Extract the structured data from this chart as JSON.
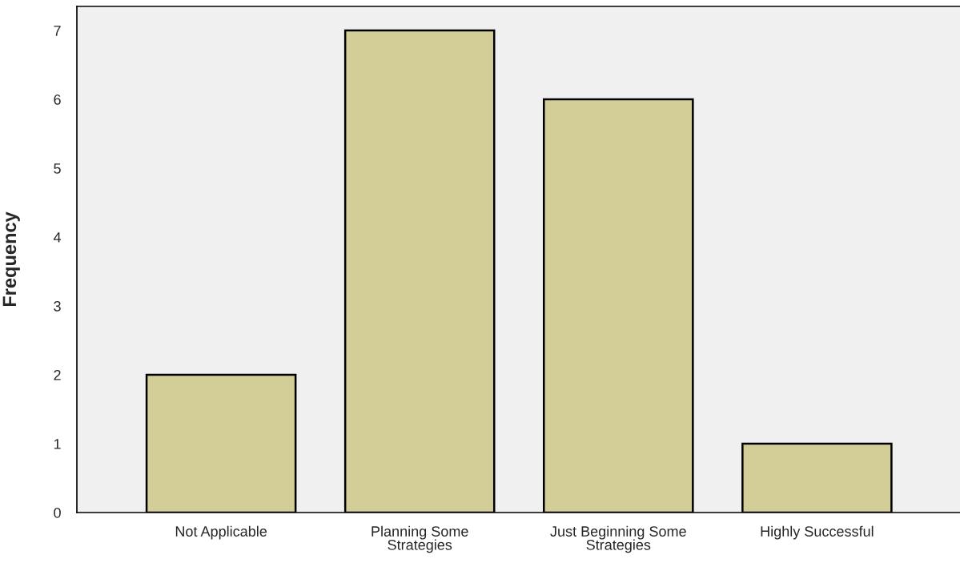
{
  "chart_data": {
    "type": "bar",
    "ylabel": "Frequency",
    "categories": [
      "Not Applicable",
      "Planning Some\nStrategies",
      "Just Beginning Some\nStrategies",
      "Highly Successful"
    ],
    "values": [
      2,
      7,
      6,
      1
    ],
    "color": "#d3ce97",
    "ylim": [
      0,
      7.35
    ],
    "yticks": [
      0,
      1,
      2,
      3,
      4,
      5,
      6,
      7
    ],
    "grid": false,
    "legend": false
  }
}
